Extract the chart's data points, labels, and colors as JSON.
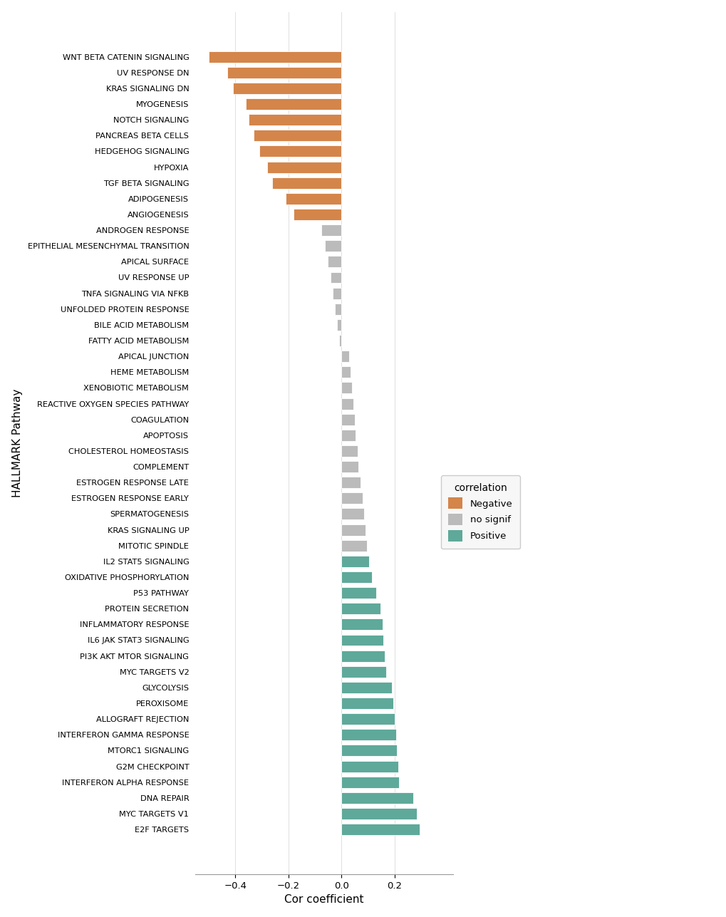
{
  "categories": [
    "WNT BETA CATENIN SIGNALING",
    "UV RESPONSE DN",
    "KRAS SIGNALING DN",
    "MYOGENESIS",
    "NOTCH SIGNALING",
    "PANCREAS BETA CELLS",
    "HEDGEHOG SIGNALING",
    "HYPOXIA",
    "TGF BETA SIGNALING",
    "ADIPOGENESIS",
    "ANGIOGENESIS",
    "ANDROGEN RESPONSE",
    "EPITHELIAL MESENCHYMAL TRANSITION",
    "APICAL SURFACE",
    "UV RESPONSE UP",
    "TNFA SIGNALING VIA NFKB",
    "UNFOLDED PROTEIN RESPONSE",
    "BILE ACID METABOLISM",
    "FATTY ACID METABOLISM",
    "APICAL JUNCTION",
    "HEME METABOLISM",
    "XENOBIOTIC METABOLISM",
    "REACTIVE OXYGEN SPECIES PATHWAY",
    "COAGULATION",
    "APOPTOSIS",
    "CHOLESTEROL HOMEOSTASIS",
    "COMPLEMENT",
    "ESTROGEN RESPONSE LATE",
    "ESTROGEN RESPONSE EARLY",
    "SPERMATOGENESIS",
    "KRAS SIGNALING UP",
    "MITOTIC SPINDLE",
    "IL2 STAT5 SIGNALING",
    "OXIDATIVE PHOSPHORYLATION",
    "P53 PATHWAY",
    "PROTEIN SECRETION",
    "INFLAMMATORY RESPONSE",
    "IL6 JAK STAT3 SIGNALING",
    "PI3K AKT MTOR SIGNALING",
    "MYC TARGETS V2",
    "GLYCOLYSIS",
    "PEROXISOME",
    "ALLOGRAFT REJECTION",
    "INTERFERON GAMMA RESPONSE",
    "MTORC1 SIGNALING",
    "G2M CHECKPOINT",
    "INTERFERON ALPHA RESPONSE",
    "DNA REPAIR",
    "MYC TARGETS V1",
    "E2F TARGETS"
  ],
  "values": [
    -0.5,
    -0.43,
    -0.41,
    -0.36,
    -0.35,
    -0.33,
    -0.31,
    -0.28,
    -0.26,
    -0.21,
    -0.18,
    -0.075,
    -0.062,
    -0.052,
    -0.042,
    -0.033,
    -0.025,
    -0.016,
    -0.008,
    0.03,
    0.035,
    0.04,
    0.045,
    0.05,
    0.052,
    0.06,
    0.065,
    0.072,
    0.08,
    0.085,
    0.09,
    0.095,
    0.105,
    0.115,
    0.13,
    0.148,
    0.155,
    0.158,
    0.162,
    0.17,
    0.19,
    0.195,
    0.2,
    0.205,
    0.21,
    0.215,
    0.218,
    0.27,
    0.285,
    0.295
  ],
  "colors": [
    "#D4854A",
    "#D4854A",
    "#D4854A",
    "#D4854A",
    "#D4854A",
    "#D4854A",
    "#D4854A",
    "#D4854A",
    "#D4854A",
    "#D4854A",
    "#D4854A",
    "#BBBBBB",
    "#BBBBBB",
    "#BBBBBB",
    "#BBBBBB",
    "#BBBBBB",
    "#BBBBBB",
    "#BBBBBB",
    "#BBBBBB",
    "#BBBBBB",
    "#BBBBBB",
    "#BBBBBB",
    "#BBBBBB",
    "#BBBBBB",
    "#BBBBBB",
    "#BBBBBB",
    "#BBBBBB",
    "#BBBBBB",
    "#BBBBBB",
    "#BBBBBB",
    "#BBBBBB",
    "#BBBBBB",
    "#5EA99A",
    "#5EA99A",
    "#5EA99A",
    "#5EA99A",
    "#5EA99A",
    "#5EA99A",
    "#5EA99A",
    "#5EA99A",
    "#5EA99A",
    "#5EA99A",
    "#5EA99A",
    "#5EA99A",
    "#5EA99A",
    "#5EA99A",
    "#5EA99A",
    "#5EA99A",
    "#5EA99A",
    "#5EA99A"
  ],
  "xlabel": "Cor coefficient",
  "ylabel": "HALLMARK Pathway",
  "xticks": [
    -0.4,
    -0.2,
    0.0,
    0.2
  ],
  "xlim": [
    -0.55,
    0.42
  ],
  "legend_labels": [
    "Negative",
    "no signif",
    "Positive"
  ],
  "legend_colors": [
    "#D4854A",
    "#BBBBBB",
    "#5EA99A"
  ],
  "legend_title": "correlation",
  "bg_color": "#FFFFFF"
}
